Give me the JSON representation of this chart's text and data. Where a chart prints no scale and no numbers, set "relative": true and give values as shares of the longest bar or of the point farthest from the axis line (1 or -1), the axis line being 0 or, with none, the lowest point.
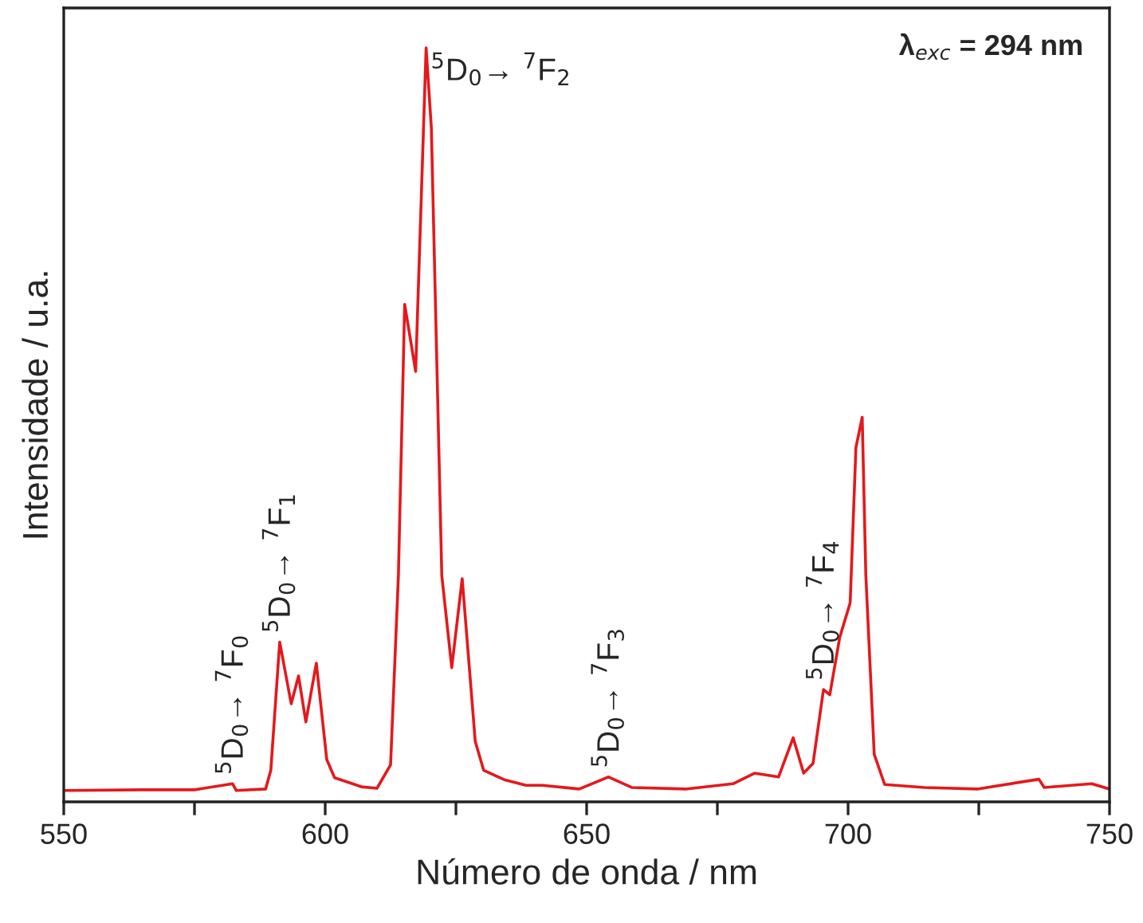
{
  "chart_data": {
    "type": "line",
    "relative": true,
    "xlabel": "Número de onda / nm",
    "ylabel": "Intensidade / u.a.",
    "xlim": [
      550,
      750
    ],
    "xticks": [
      550,
      {
        "value": 575,
        "label": null
      },
      600,
      {
        "value": 625,
        "label": null
      },
      650,
      {
        "value": 675,
        "label": null
      },
      700,
      {
        "value": 725,
        "label": null
      },
      750
    ],
    "grid": false,
    "tick_labels": "x",
    "series": [
      {
        "color": "#e3191c",
        "x": [
          550,
          565,
          575,
          582.3,
          583,
          588.6,
          589.6,
          591.3,
          593.5,
          594.9,
          596.3,
          598.3,
          600.3,
          601.8,
          606.9,
          609.9,
          612.5,
          614.0,
          615.2,
          617.3,
          619.3,
          620.3,
          622.3,
          624.2,
          626.2,
          628.7,
          630.3,
          634.4,
          638.4,
          641.5,
          648.6,
          654.2,
          658.7,
          668.9,
          678,
          682.1,
          686.7,
          689.5,
          691.5,
          693.3,
          695.3,
          696.5,
          698.4,
          700.4,
          701.5,
          702.7,
          703.4,
          705,
          707,
          714.6,
          724.7,
          736.5,
          737.5,
          746.6,
          750
        ],
        "values": [
          0.015,
          0.016,
          0.016,
          0.024,
          0.015,
          0.017,
          0.042,
          0.212,
          0.13,
          0.167,
          0.106,
          0.184,
          0.056,
          0.032,
          0.02,
          0.018,
          0.049,
          0.3,
          0.66,
          0.571,
          1.0,
          0.894,
          0.3,
          0.178,
          0.296,
          0.08,
          0.042,
          0.029,
          0.022,
          0.022,
          0.017,
          0.033,
          0.019,
          0.017,
          0.024,
          0.038,
          0.033,
          0.085,
          0.038,
          0.051,
          0.149,
          0.142,
          0.218,
          0.264,
          0.47,
          0.51,
          0.3,
          0.063,
          0.023,
          0.019,
          0.017,
          0.03,
          0.019,
          0.024,
          0.017
        ]
      }
    ],
    "annotations": [
      {
        "text": "$^{5}$D$_{0}$→ $^{7}$F$_{0}$",
        "x": 582.3,
        "y": 0.024
      },
      {
        "text": "$^{5}$D$_{0}$→ $^{7}$F$_{1}$",
        "x": 591.3,
        "y": 0.212
      },
      {
        "text": "$^{5}$D$_{0}$→ $^{7}$F$_{2}$",
        "x": 619.3,
        "y": 1.0
      },
      {
        "text": "$^{5}$D$_{0}$→ $^{7}$F$_{3}$",
        "x": 654.2,
        "y": 0.033
      },
      {
        "text": "$^{5}$D$_{0}$→ $^{7}$F$_{4}$",
        "x": 695.3,
        "y": 0.149
      },
      "λ$_{exc}$ = 294 nm"
    ]
  }
}
